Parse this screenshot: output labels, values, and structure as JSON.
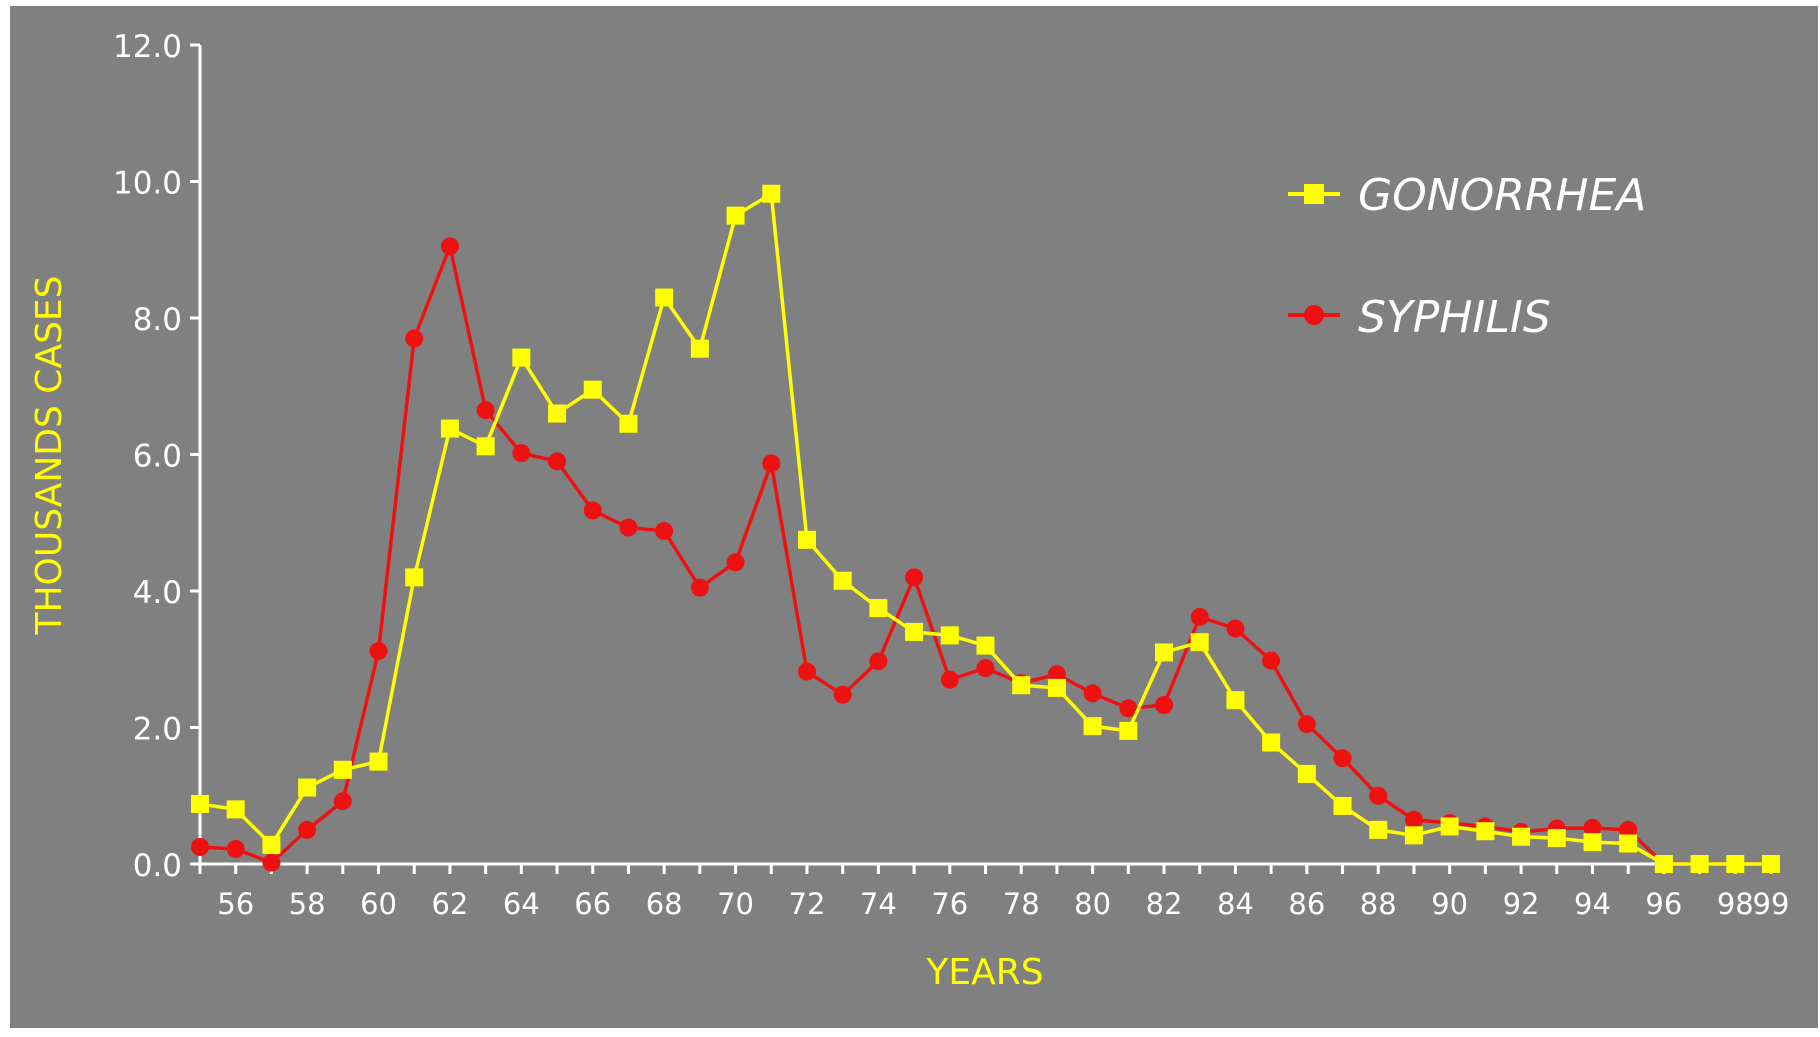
{
  "chart_data": {
    "type": "line",
    "title": "",
    "xlabel": "YEARS",
    "ylabel": "THOUSANDS CASES",
    "ylim": [
      0,
      12
    ],
    "y_ticks": [
      "0.0",
      "2.0",
      "4.0",
      "6.0",
      "8.0",
      "10.0",
      "12.0"
    ],
    "x_ticks": [
      "56",
      "58",
      "60",
      "62",
      "64",
      "66",
      "68",
      "70",
      "72",
      "74",
      "76",
      "78",
      "80",
      "82",
      "84",
      "86",
      "88",
      "90",
      "92",
      "94",
      "96",
      "98",
      "99"
    ],
    "x": [
      "55",
      "56",
      "57",
      "58",
      "59",
      "60",
      "61",
      "62",
      "63",
      "64",
      "65",
      "66",
      "67",
      "68",
      "69",
      "70",
      "71",
      "72",
      "73",
      "74",
      "75",
      "76",
      "77",
      "78",
      "79",
      "80",
      "81",
      "82",
      "83",
      "84",
      "85",
      "86",
      "87",
      "88",
      "89",
      "90",
      "91",
      "92",
      "93",
      "94",
      "95",
      "96",
      "97",
      "98",
      "99"
    ],
    "grid": false,
    "legend_position": "top-right",
    "series": [
      {
        "name": "GONORRHEA",
        "color": "#ffff00",
        "marker": "square",
        "values": [
          0.88,
          0.8,
          0.28,
          1.12,
          1.38,
          1.5,
          4.2,
          6.38,
          6.12,
          7.42,
          6.6,
          6.95,
          6.45,
          8.3,
          7.55,
          9.5,
          9.82,
          4.75,
          4.15,
          3.75,
          3.4,
          3.35,
          3.2,
          2.62,
          2.58,
          2.02,
          1.95,
          3.1,
          3.25,
          2.4,
          1.78,
          1.32,
          0.85,
          0.5,
          0.42,
          0.55,
          0.48,
          0.4,
          0.38,
          0.32,
          0.3,
          0.0,
          0.0,
          0.0,
          0.0
        ]
      },
      {
        "name": "SYPHILIS",
        "color": "#ee1111",
        "marker": "circle",
        "values": [
          0.25,
          0.22,
          0.02,
          0.5,
          0.92,
          3.12,
          7.7,
          9.05,
          6.65,
          6.02,
          5.9,
          5.18,
          4.93,
          4.88,
          4.05,
          4.42,
          5.87,
          2.82,
          2.48,
          2.97,
          4.2,
          2.7,
          2.87,
          2.65,
          2.78,
          2.5,
          2.28,
          2.33,
          3.62,
          3.45,
          2.98,
          2.05,
          1.55,
          1.0,
          0.65,
          0.6,
          0.55,
          0.47,
          0.52,
          0.53,
          0.5,
          0.0,
          0.0,
          0.0,
          0.0
        ]
      }
    ]
  }
}
